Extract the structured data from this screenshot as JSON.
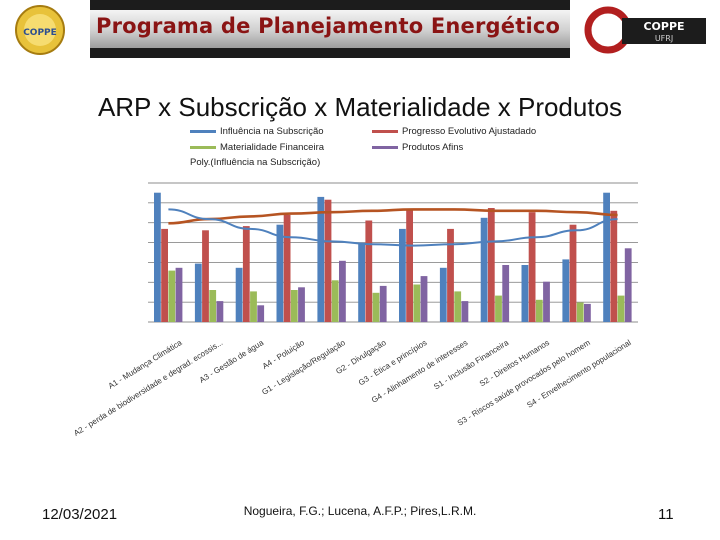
{
  "header": {
    "banner_title": "Programa de Planejamento Energético",
    "left_logo_text": "COPPE",
    "right_logo_title": "COPPE",
    "right_logo_sub": "UFRJ"
  },
  "slide": {
    "title": "ARP x Subscrição x Materialidade x Produtos",
    "date": "12/03/2021",
    "authors": "Nogueira, F.G.; Lucena, A.F.P.; Pires,L.R.M.",
    "page_number": "11"
  },
  "colors": {
    "influencia": "#4f81bd",
    "progresso": "#c0504d",
    "materialidade": "#9bbb59",
    "produtos": "#8064a2",
    "poly": "#4f81bd",
    "progresso_line": "#b65422"
  },
  "legend": {
    "influencia": "Influência na Subscrição",
    "progresso": "Progresso Evolutivo Ajustadado",
    "materialidade": "Materialidade Financeira",
    "produtos": "Produtos Afins",
    "poly": "Poly.(Influência na Subscrição)"
  },
  "chart_data": {
    "type": "bar",
    "title": "ARP x Subscrição x Materialidade x Produtos",
    "ylim": [
      0,
      10
    ],
    "grid": true,
    "categories": [
      "A1 - Mudança Climática",
      "A2 - perda de biodiversidade e degrad. ecossis...",
      "A3 - Gestão de água",
      "A4 - Poluição",
      "G1 - Legislação/Regulação",
      "G2 - Divulgação",
      "G3 - Ética e princípios",
      "G4 - Alinhamento de interesses",
      "S1 - Inclusão Financeira",
      "S2 - Direitos Humanos",
      "S3 - Riscos saúde provocados pelo homem",
      "S4 - Envelhecimento populacional"
    ],
    "category_labels": [
      "A1 - Mudança Climática",
      "A2 - perda de biodiversidade e degrad. ecossis...",
      "A3 - Gestão de água",
      "A4 - Poluição",
      "G1 - Legislação/Regulação",
      "G2 - Divulgação",
      "G3 - Ética e princípios",
      "G4 - Alinhamento de interesses",
      "S1 - Inclusão Financeira",
      "S2 - Direitos Humanos",
      "S3 - Riscos saúde provocados pelo homem",
      "S4 - Envelhecimento populacional"
    ],
    "series": [
      {
        "name": "Influência na Subscrição",
        "values": [
          9.3,
          4.2,
          3.9,
          7.0,
          9.0,
          5.7,
          6.7,
          3.9,
          7.5,
          4.1,
          4.5,
          9.3
        ]
      },
      {
        "name": "Progresso Evolutivo Ajustadado",
        "values": [
          6.7,
          6.6,
          6.9,
          7.7,
          8.8,
          7.3,
          8.1,
          6.7,
          8.2,
          7.9,
          7.0,
          8.0
        ]
      },
      {
        "name": "Materialidade Financeira",
        "values": [
          3.7,
          2.3,
          2.2,
          2.3,
          3.0,
          2.1,
          2.7,
          2.2,
          1.9,
          1.6,
          1.4,
          1.9
        ]
      },
      {
        "name": "Produtos Afins",
        "values": [
          3.9,
          1.5,
          1.2,
          2.5,
          4.4,
          2.6,
          3.3,
          1.5,
          4.1,
          2.9,
          1.3,
          5.3
        ]
      }
    ],
    "lines": [
      {
        "name": "Progresso Evolutivo Ajustadado (trend)",
        "values": [
          7.1,
          7.4,
          7.6,
          7.8,
          7.9,
          8.0,
          8.1,
          8.1,
          8.0,
          8.0,
          7.9,
          7.7
        ]
      },
      {
        "name": "Poly.(Influência na Subscrição)",
        "values": [
          8.1,
          7.4,
          6.7,
          6.1,
          5.8,
          5.6,
          5.5,
          5.6,
          5.8,
          6.1,
          6.6,
          7.4
        ]
      }
    ]
  }
}
